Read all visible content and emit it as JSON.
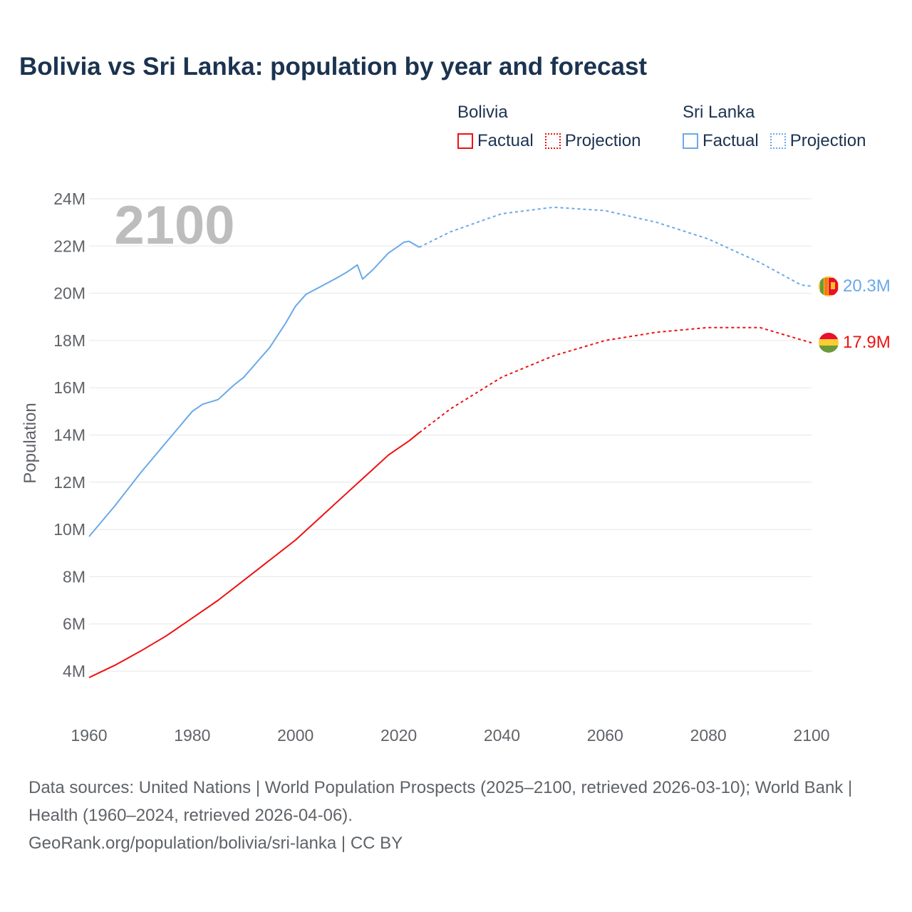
{
  "title": "Bolivia vs Sri Lanka: population by year and forecast",
  "legend": {
    "groups": [
      {
        "name": "Bolivia",
        "color": "#ee1111",
        "factual": "Factual",
        "projection": "Projection"
      },
      {
        "name": "Sri Lanka",
        "color": "#6aa9e8",
        "factual": "Factual",
        "projection": "Projection"
      }
    ]
  },
  "year_watermark": "2100",
  "footer": {
    "sources": "Data sources: United Nations | World Population Prospects (2025–2100, retrieved 2026-03-10); World Bank | Health (1960–2024, retrieved 2026-04-06).",
    "credit": "GeoRank.org/population/bolivia/sri-lanka | CC BY"
  },
  "chart_data": {
    "type": "line",
    "title": "Bolivia vs Sri Lanka: population by year and forecast",
    "xlabel": "",
    "ylabel": "Population",
    "xlim": [
      1960,
      2100
    ],
    "ylim": [
      4,
      24
    ],
    "y_unit": "M",
    "x_ticks": [
      "1960",
      "1980",
      "2000",
      "2020",
      "2040",
      "2060",
      "2080",
      "2100"
    ],
    "y_ticks": [
      "4M",
      "6M",
      "8M",
      "10M",
      "12M",
      "14M",
      "16M",
      "18M",
      "20M",
      "22M",
      "24M"
    ],
    "grid": true,
    "legend_position": "top-right",
    "series": [
      {
        "name": "Sri Lanka",
        "color": "#6aa9e8",
        "end_label": "20.3M",
        "factual": {
          "x": [
            1960,
            1965,
            1970,
            1975,
            1980,
            1982,
            1985,
            1988,
            1990,
            1993,
            1995,
            1998,
            2000,
            2002,
            2005,
            2008,
            2010,
            2012,
            2013,
            2015,
            2018,
            2020,
            2021,
            2022,
            2024
          ],
          "y": [
            9.7,
            11.0,
            12.4,
            13.7,
            15.0,
            15.3,
            15.5,
            16.1,
            16.45,
            17.2,
            17.7,
            18.7,
            19.45,
            19.95,
            20.3,
            20.65,
            20.9,
            21.2,
            20.6,
            21.0,
            21.7,
            22.0,
            22.16,
            22.2,
            21.95
          ]
        },
        "projection": {
          "x": [
            2024,
            2030,
            2040,
            2050,
            2060,
            2070,
            2080,
            2090,
            2098,
            2100
          ],
          "y": [
            21.95,
            22.6,
            23.37,
            23.64,
            23.5,
            23.0,
            22.3,
            21.3,
            20.35,
            20.3
          ]
        }
      },
      {
        "name": "Bolivia",
        "color": "#ee1111",
        "end_label": "17.9M",
        "factual": {
          "x": [
            1960,
            1965,
            1970,
            1975,
            1980,
            1985,
            1990,
            1995,
            2000,
            2005,
            2010,
            2015,
            2018,
            2020,
            2022,
            2024
          ],
          "y": [
            3.73,
            4.25,
            4.85,
            5.5,
            6.25,
            7.0,
            7.85,
            8.7,
            9.55,
            10.55,
            11.55,
            12.55,
            13.15,
            13.45,
            13.75,
            14.1
          ]
        },
        "projection": {
          "x": [
            2024,
            2030,
            2040,
            2050,
            2060,
            2070,
            2080,
            2090,
            2100
          ],
          "y": [
            14.1,
            15.1,
            16.45,
            17.35,
            18.0,
            18.35,
            18.55,
            18.55,
            17.9
          ]
        }
      }
    ]
  }
}
